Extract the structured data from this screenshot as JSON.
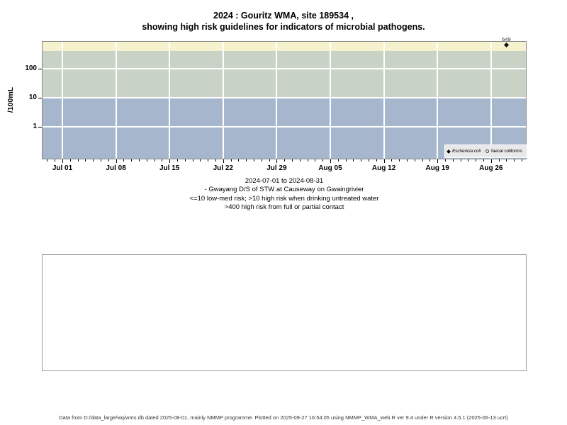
{
  "title": {
    "line1": "2024 : Gouritz WMA, site 189534 ,",
    "line2": "showing high risk guidelines for indicators of microbial pathogens."
  },
  "y_axis": {
    "label": "/100mL",
    "ticks": [
      "100",
      "10",
      "1"
    ]
  },
  "x_axis": {
    "tick_labels": [
      "Jul 01",
      "Jul 08",
      "Jul 15",
      "Jul 22",
      "Jul 29",
      "Aug 05",
      "Aug 12",
      "Aug 19",
      "Aug 26"
    ]
  },
  "legend": {
    "items": [
      {
        "symbol": "filled-diamond",
        "label": "Eschericia coli"
      },
      {
        "symbol": "open-circle",
        "label": "faecal coliforms"
      }
    ]
  },
  "caption": {
    "line1": "2024-07-01 to 2024-08-31",
    "line2": "- Gwayang D/S of STW at Causeway on Gwaingrivier",
    "line3": "<=10 low-med risk; >10 high risk when drinking untreated water",
    "line4": ">400 high risk from full or partial contact"
  },
  "footer": {
    "text": "Data from D:/data_large/wq/wms.db dated 2025-08-01, mainly NMMP programme. Plotted on 2025-09-27 16:54:05 using NMMP_WMA_web.R ver 9.4 under R version 4.5.1 (2025-06-13 ucrt)"
  },
  "chart_data": {
    "type": "scatter",
    "title": "2024 : Gouritz WMA, site 189534 , showing high risk guidelines for indicators of microbial pathogens.",
    "xlabel": "",
    "ylabel": "/100mL",
    "y_scale": "log10",
    "ylim": [
      0.07,
      1100
    ],
    "x_start": "2024-07-01",
    "x_end": "2024-08-31",
    "x_major_ticks": [
      "2024-07-01",
      "2024-07-08",
      "2024-07-15",
      "2024-07-22",
      "2024-07-29",
      "2024-08-05",
      "2024-08-12",
      "2024-08-19",
      "2024-08-26"
    ],
    "x_minor_ticks": "daily",
    "grid": {
      "on": true,
      "color": "#FFFFFF",
      "h_lines": [
        100,
        10,
        1
      ],
      "v_lines": "weekly-major-ticks"
    },
    "bands": [
      {
        "range": [
          400,
          1100
        ],
        "color": "#F7F2CE",
        "meaning": ">400 high risk from full or partial contact"
      },
      {
        "range": [
          10,
          400
        ],
        "color": "#C8D3C5",
        "meaning": ">10 high risk when drinking untreated water"
      },
      {
        "range": [
          0.07,
          10
        ],
        "color": "#A6B6CC",
        "meaning": "<=10 low-med risk"
      }
    ],
    "series": [
      {
        "name": "Eschericia coli",
        "marker": "filled-diamond",
        "color": "#111111",
        "points": [
          {
            "date": "2024-08-28",
            "value": 649,
            "label": "649"
          }
        ]
      },
      {
        "name": "faecal coliforms",
        "marker": "open-circle",
        "color": "#444444",
        "points": []
      }
    ],
    "legend_position": "bottom-right-inside-plot"
  }
}
